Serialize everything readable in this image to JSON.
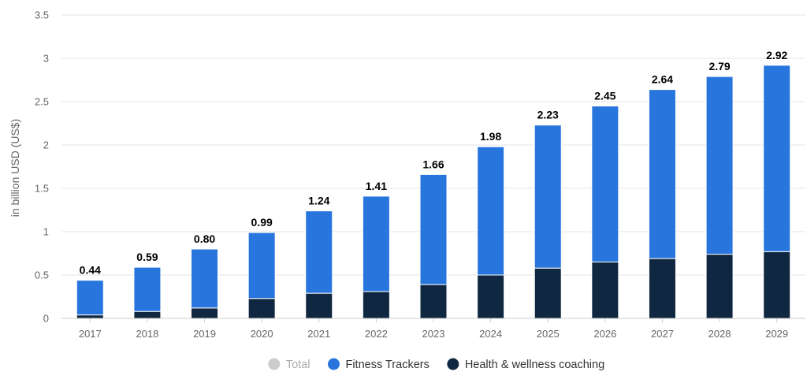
{
  "chart_data": {
    "type": "bar",
    "stacked": true,
    "categories": [
      "2017",
      "2018",
      "2019",
      "2020",
      "2021",
      "2022",
      "2023",
      "2024",
      "2025",
      "2026",
      "2027",
      "2028",
      "2029"
    ],
    "series": [
      {
        "name": "Health & wellness coaching",
        "color": "#0f2740",
        "values": [
          0.04,
          0.08,
          0.12,
          0.23,
          0.29,
          0.31,
          0.39,
          0.5,
          0.58,
          0.65,
          0.69,
          0.74,
          0.77
        ]
      },
      {
        "name": "Fitness Trackers",
        "color": "#2876dd",
        "values": [
          0.4,
          0.51,
          0.68,
          0.76,
          0.95,
          1.1,
          1.27,
          1.48,
          1.65,
          1.8,
          1.95,
          2.05,
          2.15
        ]
      }
    ],
    "totals": [
      "0.44",
      "0.59",
      "0.80",
      "0.99",
      "1.24",
      "1.41",
      "1.66",
      "1.98",
      "2.23",
      "2.45",
      "2.64",
      "2.79",
      "2.92"
    ],
    "yticks": [
      "0",
      "0.5",
      "1",
      "1.5",
      "2",
      "2.5",
      "3",
      "3.5"
    ],
    "ylim": [
      0,
      3.5
    ],
    "ylabel": "in billion USD (US$)",
    "xlabel": "",
    "grid": true,
    "legend_position": "bottom-center",
    "legend": [
      {
        "label": "Total",
        "color": "#cccccc",
        "text_color": "#aaaaaa",
        "active": false
      },
      {
        "label": "Fitness Trackers",
        "color": "#2876dd",
        "text_color": "#333333",
        "active": true
      },
      {
        "label": "Health & wellness coaching",
        "color": "#0f2740",
        "text_color": "#333333",
        "active": true
      }
    ]
  }
}
